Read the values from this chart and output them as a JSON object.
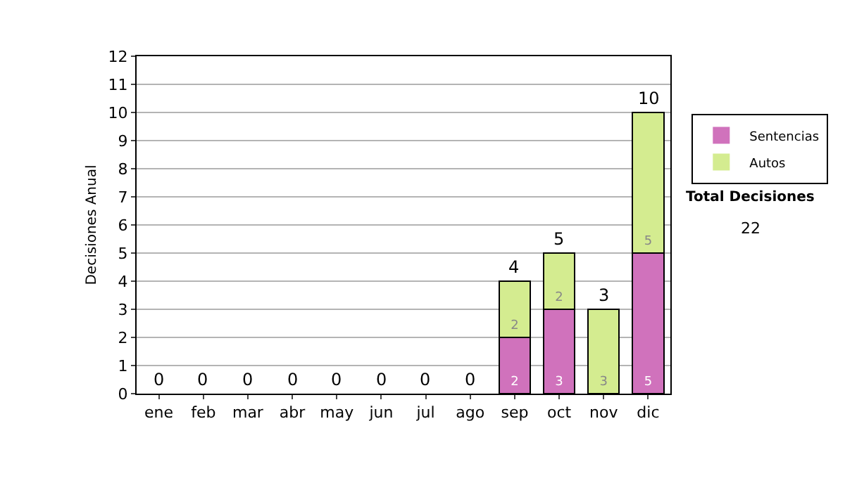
{
  "chart_data": {
    "type": "bar",
    "stacked": true,
    "ylabel": "Decisiones Anual",
    "categories": [
      "ene",
      "feb",
      "mar",
      "abr",
      "may",
      "jun",
      "jul",
      "ago",
      "sep",
      "oct",
      "nov",
      "dic"
    ],
    "series": [
      {
        "name": "Sentencias",
        "color": "#d072bc",
        "values": [
          0,
          0,
          0,
          0,
          0,
          0,
          0,
          0,
          2,
          3,
          0,
          5
        ],
        "value_labels": [
          null,
          null,
          null,
          null,
          null,
          null,
          null,
          null,
          "2",
          "3",
          null,
          "5"
        ]
      },
      {
        "name": "Autos",
        "color": "#d4ec90",
        "values": [
          0,
          0,
          0,
          0,
          0,
          0,
          0,
          0,
          2,
          2,
          3,
          5
        ],
        "value_labels": [
          null,
          null,
          null,
          null,
          null,
          null,
          null,
          null,
          "2",
          "2",
          "3",
          "5"
        ]
      }
    ],
    "totals": [
      "0",
      "0",
      "0",
      "0",
      "0",
      "0",
      "0",
      "0",
      "4",
      "5",
      "3",
      "10"
    ],
    "ylim": [
      0,
      12
    ],
    "yticks": [
      0,
      1,
      2,
      3,
      4,
      5,
      6,
      7,
      8,
      9,
      10,
      11,
      12
    ],
    "grid": "y",
    "legend": "right",
    "annotations": [
      "Total Decisiones",
      "22"
    ]
  }
}
